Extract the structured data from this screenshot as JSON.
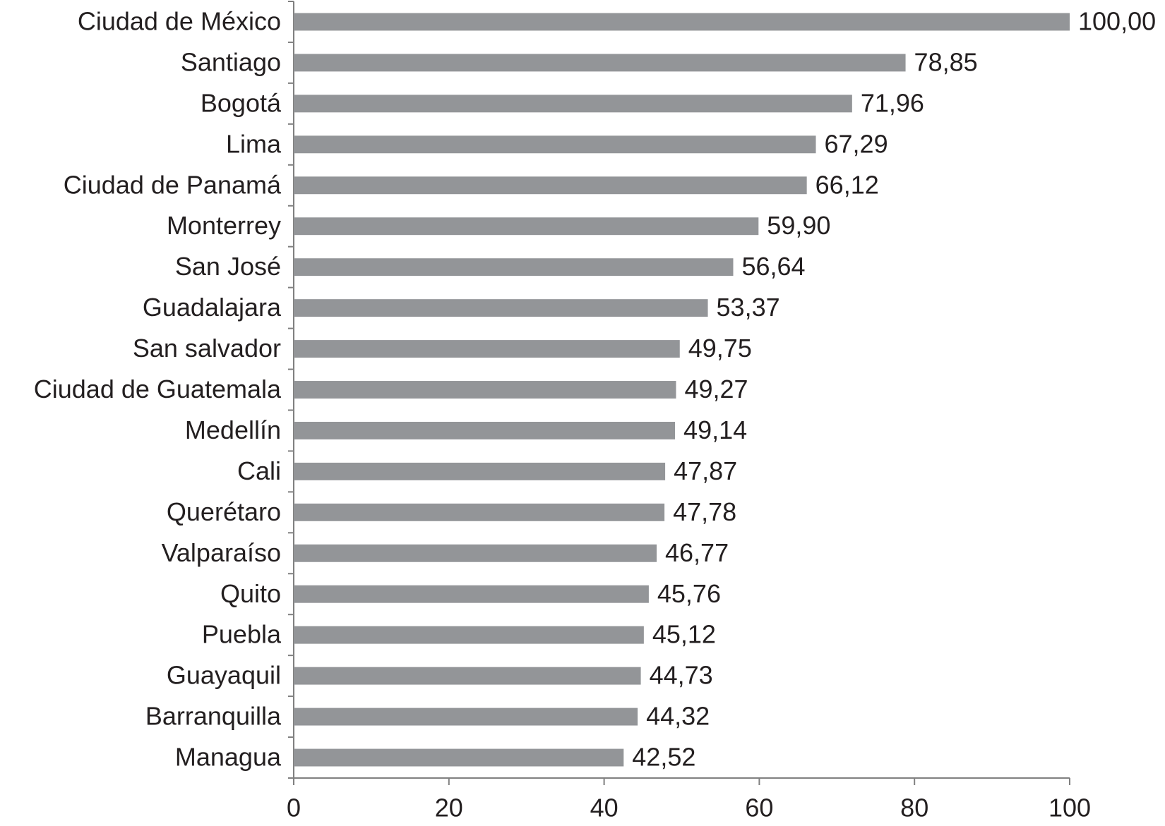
{
  "chart_data": {
    "type": "bar",
    "orientation": "horizontal",
    "categories": [
      "Ciudad de México",
      "Santiago",
      "Bogotá",
      "Lima",
      "Ciudad de Panamá",
      "Monterrey",
      "San José",
      "Guadalajara",
      "San salvador",
      "Ciudad de Guatemala",
      "Medellín",
      "Cali",
      "Querétaro",
      "Valparaíso",
      "Quito",
      "Puebla",
      "Guayaquil",
      "Barranquilla",
      "Managua"
    ],
    "values": [
      100.0,
      78.85,
      71.96,
      67.29,
      66.12,
      59.9,
      56.64,
      53.37,
      49.75,
      49.27,
      49.14,
      47.87,
      47.78,
      46.77,
      45.76,
      45.12,
      44.73,
      44.32,
      42.52
    ],
    "value_labels": [
      "100,00",
      "78,85",
      "71,96",
      "67,29",
      "66,12",
      "59,90",
      "56,64",
      "53,37",
      "49,75",
      "49,27",
      "49,14",
      "47,87",
      "47,78",
      "46,77",
      "45,76",
      "45,12",
      "44,73",
      "44,32",
      "42,52"
    ],
    "color": "#939598",
    "xlim": [
      0,
      100
    ],
    "xticks": [
      0,
      20,
      40,
      60,
      80,
      100
    ],
    "grid": false
  }
}
